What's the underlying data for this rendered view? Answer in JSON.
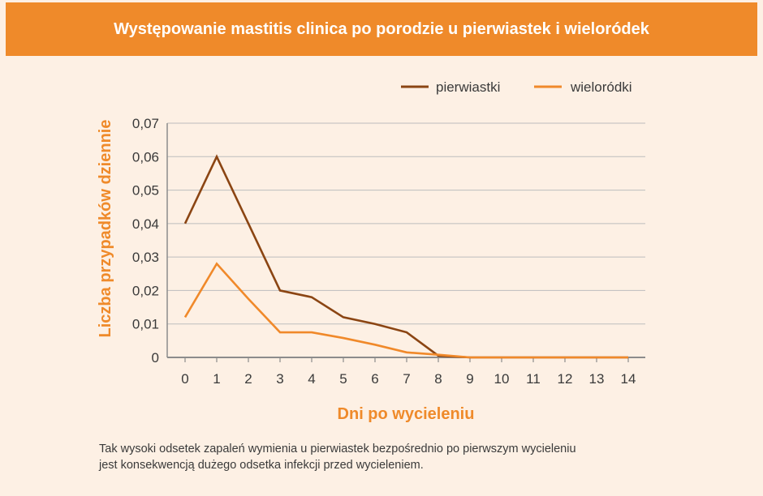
{
  "chart_data": {
    "type": "line",
    "title": "Występowanie mastitis clinica po porodzie u pierwiastek i wieloródek",
    "xlabel": "Dni po wycieleniu",
    "ylabel": "Liczba przypadków dziennie",
    "x": [
      0,
      1,
      2,
      3,
      4,
      5,
      6,
      7,
      8,
      9,
      10,
      11,
      12,
      13,
      14
    ],
    "x_tick_labels": [
      "0",
      "1",
      "2",
      "3",
      "4",
      "5",
      "6",
      "7",
      "8",
      "9",
      "10",
      "11",
      "12",
      "13",
      "14"
    ],
    "y_tick_labels": [
      "0",
      "0,01",
      "0,02",
      "0,03",
      "0,04",
      "0,05",
      "0,06",
      "0,07"
    ],
    "ylim": [
      0,
      0.07
    ],
    "grid": "horizontal",
    "legend_position": "top-right",
    "series": [
      {
        "name": "pierwiastki",
        "color": "#8b4513",
        "values": [
          0.04,
          0.06,
          0.04,
          0.02,
          0.018,
          0.012,
          0.01,
          0.0075,
          0.0005,
          0,
          0,
          0,
          0,
          0,
          0
        ]
      },
      {
        "name": "wieloródki",
        "color": "#f0892a",
        "values": [
          0.012,
          0.028,
          0.0175,
          0.0075,
          0.0075,
          0.0058,
          0.0038,
          0.0015,
          0.0008,
          0,
          0,
          0,
          0,
          0,
          0
        ]
      }
    ]
  },
  "caption": {
    "line1": "Tak wysoki odsetek zapaleń wymienia u pierwiastek bezpośrednio po pierwszym wycieleniu",
    "line2": "jest konsekwencją dużego odsetka infekcji przed wycieleniem."
  },
  "colors": {
    "header_bg": "#ef8a2a",
    "page_bg": "#fdf0e4",
    "axis_label": "#ef8a2a",
    "grid": "#bdbdbd",
    "axis": "#8c8c8c",
    "tick_text": "#3a3a3a"
  }
}
